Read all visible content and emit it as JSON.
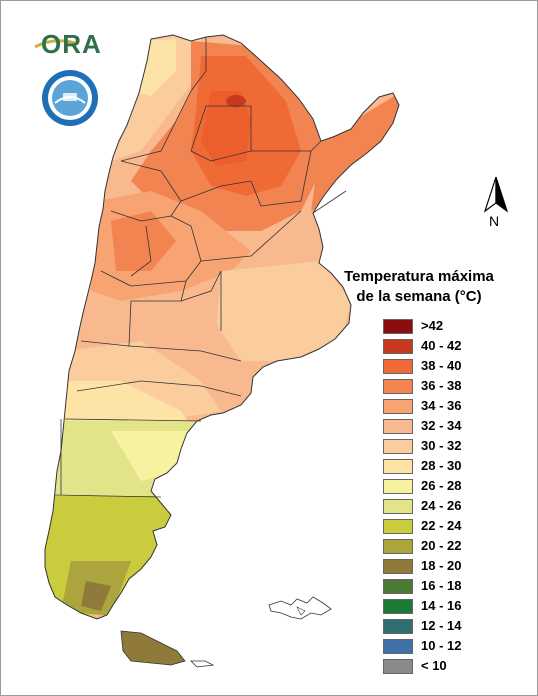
{
  "logo": {
    "text": "ORA"
  },
  "seal": {
    "icon": "argentina-agency-seal"
  },
  "north_arrow": {
    "label": "N"
  },
  "legend": {
    "title_line1": "Temperatura máxima",
    "title_line2": "de la semana (°C)",
    "items": [
      {
        "label": ">42",
        "color": "#8b0d0d"
      },
      {
        "label": "40 - 42",
        "color": "#c83a1e"
      },
      {
        "label": "38 - 40",
        "color": "#f06a36"
      },
      {
        "label": "36 - 38",
        "color": "#f28452"
      },
      {
        "label": "34 - 36",
        "color": "#f7a372"
      },
      {
        "label": "32 - 34",
        "color": "#f9b98e"
      },
      {
        "label": "30 - 32",
        "color": "#fbcc9e"
      },
      {
        "label": "28 - 30",
        "color": "#fde3a6"
      },
      {
        "label": "26 - 28",
        "color": "#f7f2a0"
      },
      {
        "label": "24 - 26",
        "color": "#e3e38a"
      },
      {
        "label": "22 - 24",
        "color": "#c9cc3c"
      },
      {
        "label": "20 - 22",
        "color": "#aca43d"
      },
      {
        "label": "18 - 20",
        "color": "#8f7a3a"
      },
      {
        "label": "16 - 18",
        "color": "#4a7a36"
      },
      {
        "label": "14 - 16",
        "color": "#1b7a36"
      },
      {
        "label": "12 - 14",
        "color": "#2f6f6f"
      },
      {
        "label": "10 - 12",
        "color": "#3f72a8"
      },
      {
        "label": "< 10",
        "color": "#8a8a8a"
      }
    ]
  }
}
